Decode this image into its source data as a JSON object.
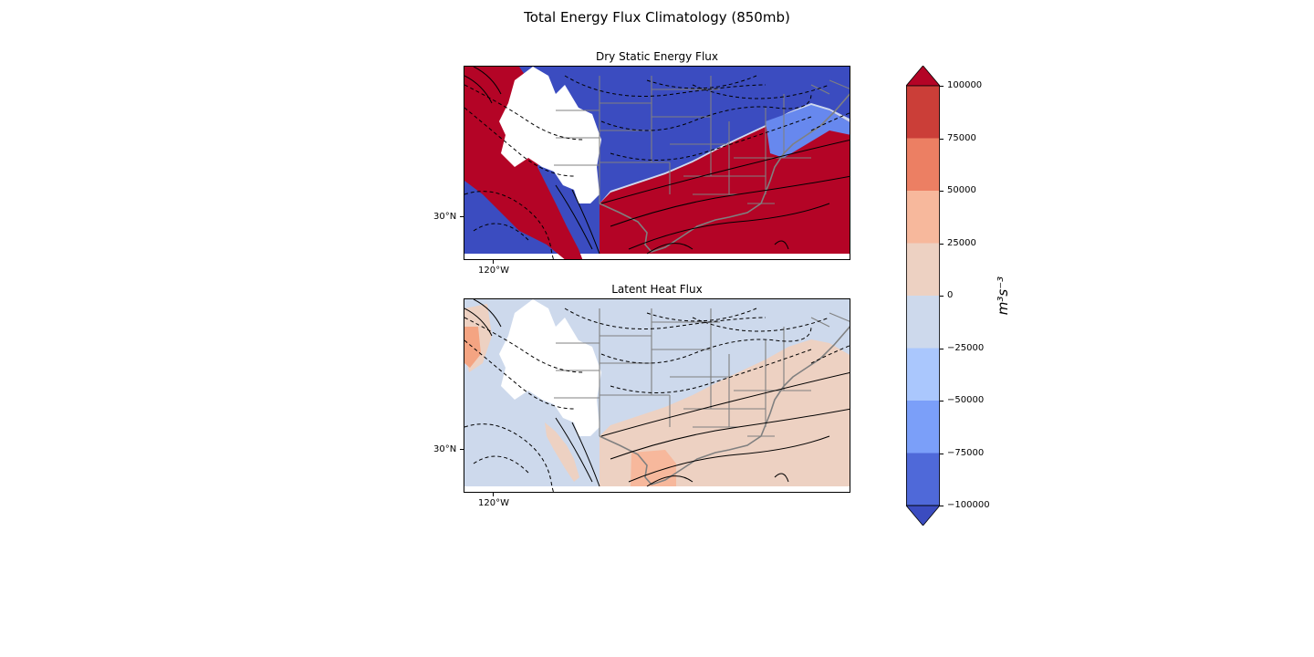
{
  "figure": {
    "suptitle": "Total Energy Flux Climatology (850mb)"
  },
  "panels": [
    {
      "title": "Dry Static Energy Flux",
      "lat_label": "30°N",
      "lon_label": "120°W",
      "palette": {
        "background": "#3b4cc0",
        "foreground": "#b40426",
        "mid": "#cfd9ee",
        "blend": "#6788ee"
      }
    },
    {
      "title": "Latent Heat Flux",
      "lat_label": "30°N",
      "lon_label": "120°W",
      "palette": {
        "background": "#cdd9ec",
        "foreground": "#edd1c2",
        "mid": "#f7b89c",
        "blend": "#f4a482"
      }
    }
  ],
  "colorbar": {
    "label": "m³s⁻³",
    "label_html": "m<sup>3</sup>s<sup>−3</sup>",
    "ticks": [
      "100000",
      "75000",
      "50000",
      "25000",
      "0",
      "−25000",
      "−50000",
      "−75000",
      "−100000"
    ],
    "colors": [
      "#b40426",
      "#cb3e38",
      "#ec7f63",
      "#f7b89c",
      "#edd1c2",
      "#cdd9ec",
      "#aac7fd",
      "#7b9ff9",
      "#4f69d9",
      "#3b4cc0"
    ]
  },
  "colors": {
    "land_mask": "#ffffff",
    "borders": "#808080",
    "contours": "#000000"
  }
}
